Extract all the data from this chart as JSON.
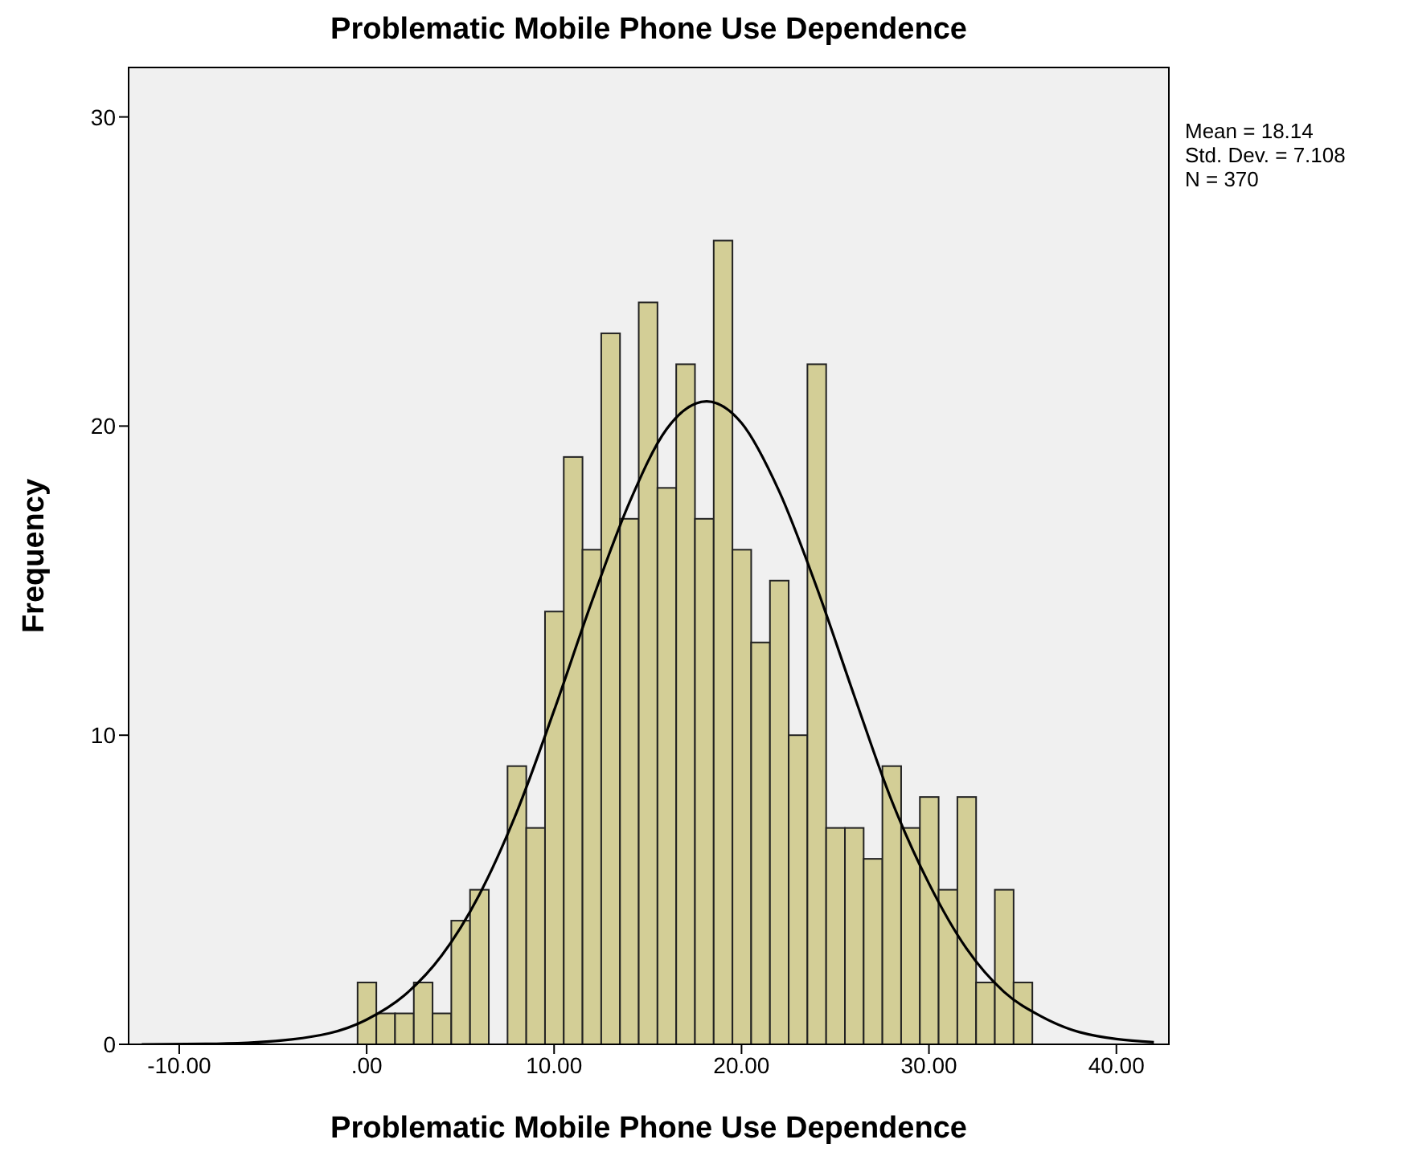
{
  "chart_data": {
    "type": "histogram",
    "title": "Problematic Mobile Phone Use Dependence",
    "xlabel": "Problematic Mobile Phone Use Dependence",
    "ylabel": "Frequency",
    "bins": [
      -0.5,
      0.5,
      1.5,
      2.5,
      3.5,
      4.5,
      5.5,
      6.5,
      7.5,
      8.5,
      9.5,
      10.5,
      11.5,
      12.5,
      13.5,
      14.5,
      15.5,
      16.5,
      17.5,
      18.5,
      19.5,
      20.5,
      21.5,
      22.5,
      23.5,
      24.5,
      25.5,
      26.5,
      27.5,
      28.5,
      29.5,
      30.5,
      31.5,
      32.5,
      33.5,
      34.5,
      35.5
    ],
    "values": [
      2,
      1,
      1,
      2,
      1,
      4,
      5,
      0,
      9,
      7,
      14,
      19,
      16,
      23,
      17,
      24,
      18,
      22,
      17,
      26,
      16,
      13,
      15,
      10,
      22,
      7,
      7,
      6,
      9,
      7,
      8,
      5,
      8,
      2,
      5,
      2
    ],
    "color": "#d3ce96",
    "series": [
      {
        "type": "line",
        "color": "#000000",
        "x": [
          -12,
          -8,
          -4,
          0,
          2,
          4,
          6,
          8,
          10,
          12,
          14,
          16,
          18.14,
          20,
          22,
          24,
          26,
          28,
          30,
          32,
          34,
          36,
          38,
          42
        ],
        "values": [
          0,
          0.02,
          0.16,
          0.8,
          1.58,
          2.87,
          4.83,
          7.5,
          10.8,
          14.3,
          17.5,
          19.9,
          20.8,
          20.1,
          17.9,
          14.8,
          11.3,
          7.9,
          5.2,
          3.1,
          1.7,
          0.9,
          0.4,
          0.07
        ]
      }
    ],
    "xlim": [
      -12.7,
      42.8
    ],
    "xticks": [
      {
        "value": -10,
        "label": "-10.00"
      },
      {
        "value": 0,
        "label": ".00"
      },
      {
        "value": 10,
        "label": "10.00"
      },
      {
        "value": 20,
        "label": "20.00"
      },
      {
        "value": 30,
        "label": "30.00"
      },
      {
        "value": 40,
        "label": "40.00"
      }
    ],
    "ylim": [
      0,
      31.6
    ],
    "yticks": [
      0,
      10,
      20,
      30
    ],
    "annotations": [
      "Mean = 18.14",
      "Std. Dev. = 7.108",
      "N = 370"
    ]
  }
}
